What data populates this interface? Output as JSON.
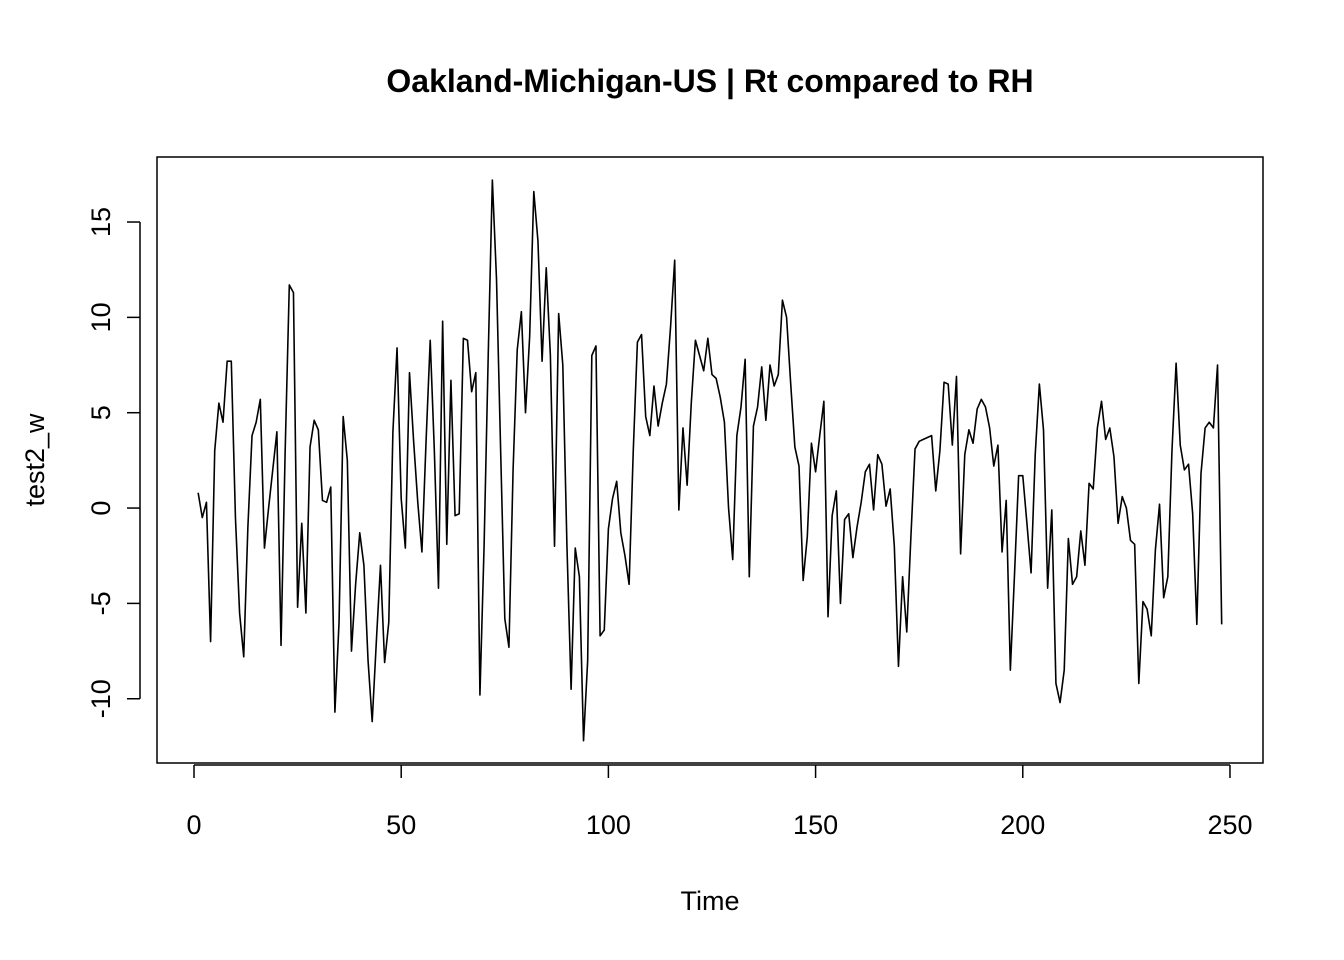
{
  "chart_data": {
    "type": "line",
    "title": "Oakland-Michigan-US | Rt compared to RH",
    "xlabel": "Time",
    "ylabel": "test2_w",
    "x": [
      1,
      2,
      3,
      4,
      5,
      6,
      7,
      8,
      9,
      10,
      11,
      12,
      13,
      14,
      15,
      16,
      17,
      18,
      19,
      20,
      21,
      22,
      23,
      24,
      25,
      26,
      27,
      28,
      29,
      30,
      31,
      32,
      33,
      34,
      35,
      36,
      37,
      38,
      39,
      40,
      41,
      42,
      43,
      44,
      45,
      46,
      47,
      48,
      49,
      50,
      51,
      52,
      53,
      54,
      55,
      56,
      57,
      58,
      59,
      60,
      61,
      62,
      63,
      64,
      65,
      66,
      67,
      68,
      69,
      70,
      71,
      72,
      73,
      74,
      75,
      76,
      77,
      78,
      79,
      80,
      81,
      82,
      83,
      84,
      85,
      86,
      87,
      88,
      89,
      90,
      91,
      92,
      93,
      94,
      95,
      96,
      97,
      98,
      99,
      100,
      101,
      102,
      103,
      104,
      105,
      106,
      107,
      108,
      109,
      110,
      111,
      112,
      113,
      114,
      115,
      116,
      117,
      118,
      119,
      120,
      121,
      122,
      123,
      124,
      125,
      126,
      127,
      128,
      129,
      130,
      131,
      132,
      133,
      134,
      135,
      136,
      137,
      138,
      139,
      140,
      141,
      142,
      143,
      144,
      145,
      146,
      147,
      148,
      149,
      150,
      151,
      152,
      153,
      154,
      155,
      156,
      157,
      158,
      159,
      160,
      161,
      162,
      163,
      164,
      165,
      166,
      167,
      168,
      169,
      170,
      171,
      172,
      173,
      174,
      175,
      176,
      177,
      178,
      179,
      180,
      181,
      182,
      183,
      184,
      185,
      186,
      187,
      188,
      189,
      190,
      191,
      192,
      193,
      194,
      195,
      196,
      197,
      198,
      199,
      200,
      201,
      202,
      203,
      204,
      205,
      206,
      207,
      208,
      209,
      210,
      211,
      212,
      213,
      214,
      215,
      216,
      217,
      218,
      219,
      220,
      221,
      222,
      223,
      224,
      225,
      226,
      227,
      228,
      229,
      230,
      231,
      232,
      233,
      234,
      235,
      236,
      237,
      238,
      239,
      240,
      241,
      242,
      243,
      244,
      245,
      246,
      247,
      248
    ],
    "values": [
      0.8,
      -0.5,
      0.3,
      -7,
      3,
      5.5,
      4.5,
      7.7,
      7.7,
      -0.5,
      -5.5,
      -7.8,
      -1,
      3.8,
      4.5,
      5.7,
      -2.1,
      0,
      2,
      4,
      -7.2,
      3,
      11.7,
      11.3,
      -5.2,
      -0.8,
      -5.5,
      3.2,
      4.6,
      4.1,
      0.4,
      0.3,
      1.1,
      -10.7,
      -6,
      4.8,
      2.5,
      -7.5,
      -4,
      -1.3,
      -3,
      -8,
      -11.2,
      -7,
      -3,
      -8.1,
      -6,
      4,
      8.4,
      0.5,
      -2.1,
      7.1,
      3.5,
      0.3,
      -2.3,
      3.5,
      8.8,
      3,
      -4.2,
      9.8,
      -1.9,
      6.7,
      -0.4,
      -0.3,
      8.9,
      8.8,
      6.1,
      7.1,
      -9.8,
      -2,
      8,
      17.2,
      12,
      3,
      -5.8,
      -7.3,
      2,
      8.3,
      10.3,
      5,
      9,
      16.6,
      14,
      7.7,
      12.6,
      8,
      -2,
      10.2,
      7.5,
      -2,
      -9.5,
      -2.1,
      -3.6,
      -12.2,
      -8,
      8,
      8.5,
      -6.7,
      -6.4,
      -1.1,
      0.5,
      1.4,
      -1.3,
      -2.5,
      -4,
      3,
      8.7,
      9.1,
      4.8,
      3.8,
      6.4,
      4.3,
      5.5,
      6.5,
      9.5,
      13,
      -0.1,
      4.2,
      1.2,
      5.5,
      8.8,
      8,
      7.2,
      8.9,
      7,
      6.8,
      5.8,
      4.5,
      0,
      -2.7,
      3.8,
      5.3,
      7.8,
      -3.6,
      4.3,
      5.3,
      7.4,
      4.6,
      7.5,
      6.4,
      7,
      10.9,
      10,
      6.5,
      3.2,
      2.2,
      -3.8,
      -1.5,
      3.4,
      1.9,
      3.8,
      5.6,
      -5.7,
      -0.4,
      0.9,
      -5,
      -0.6,
      -0.3,
      -2.6,
      -1,
      0.3,
      1.9,
      2.3,
      -0.1,
      2.8,
      2.3,
      0.1,
      1,
      -2,
      -8.3,
      -3.6,
      -6.5,
      -1.5,
      3.1,
      3.5,
      3.6,
      3.7,
      3.8,
      0.9,
      3,
      6.6,
      6.5,
      3.3,
      6.9,
      -2.4,
      2.8,
      4.1,
      3.4,
      5.2,
      5.7,
      5.3,
      4.2,
      2.2,
      3.3,
      -2.3,
      0.4,
      -8.5,
      -3.5,
      1.7,
      1.7,
      -0.8,
      -3.4,
      2.8,
      6.5,
      4.1,
      -4.2,
      -0.1,
      -9.2,
      -10.2,
      -8.5,
      -1.6,
      -4,
      -3.6,
      -1.2,
      -3,
      1.3,
      1,
      4.2,
      5.6,
      3.6,
      4.2,
      2.7,
      -0.8,
      0.6,
      0,
      -1.7,
      -1.9,
      -9.2,
      -4.9,
      -5.3,
      -6.7,
      -2.2,
      0.2,
      -4.7,
      -3.6,
      3,
      7.6,
      3.3,
      2,
      2.3,
      -0.3,
      -6.1,
      1.8,
      4.2,
      4.5,
      4.2,
      7.5,
      -6.1
    ],
    "color": "#000000",
    "xlim": [
      -8.93,
      257.97
    ],
    "ylim": [
      -13.37,
      18.41
    ],
    "xticks": [
      0,
      50,
      100,
      150,
      200,
      250
    ],
    "yticks": [
      -10,
      -5,
      0,
      5,
      10,
      15
    ]
  }
}
